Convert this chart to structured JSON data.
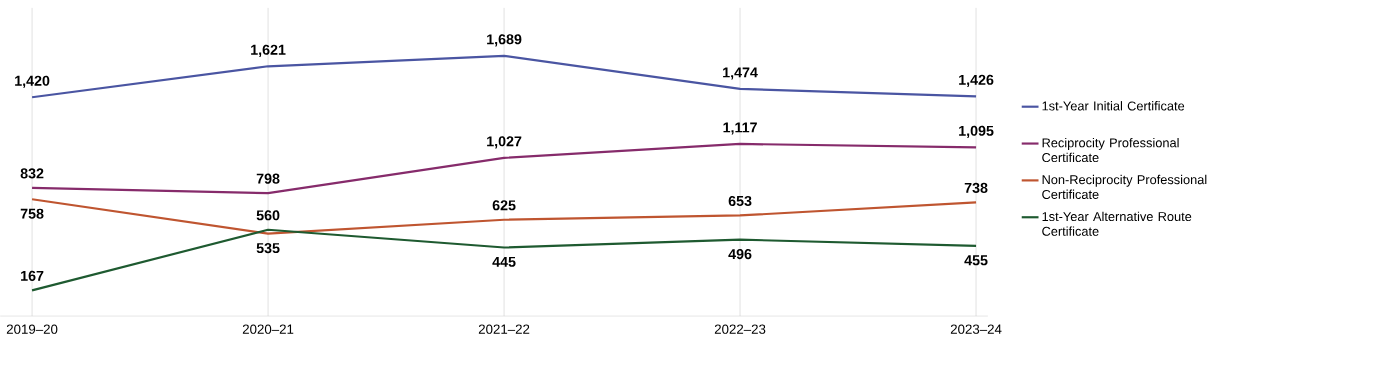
{
  "chart_data": {
    "type": "line",
    "categories": [
      "2019–20",
      "2020–21",
      "2021–22",
      "2022–23",
      "2023–24"
    ],
    "series": [
      {
        "name": "1st-Year Initial Certificate",
        "color": "#4a55a2",
        "values": [
          1420,
          1621,
          1689,
          1474,
          1426
        ],
        "value_labels": [
          "1,420",
          "1,621",
          "1,689",
          "1,474",
          "1,426"
        ]
      },
      {
        "name": "Reciprocity Professional Certificate",
        "color": "#862b6b",
        "values": [
          832,
          798,
          1027,
          1117,
          1095
        ],
        "value_labels": [
          "832",
          "798",
          "1,027",
          "1,117",
          "1,095"
        ]
      },
      {
        "name": "Non-Reciprocity Professional Certificate",
        "color": "#bf5530",
        "values": [
          758,
          535,
          625,
          653,
          738
        ],
        "value_labels": [
          "758",
          "535",
          "625",
          "653",
          "738"
        ]
      },
      {
        "name": "1st-Year Alternative Route Certificate",
        "color": "#1e5a30",
        "values": [
          167,
          560,
          445,
          496,
          455
        ],
        "value_labels": [
          "167",
          "560",
          "445",
          "496",
          "455"
        ]
      }
    ],
    "ylim": [
      0,
      2000
    ],
    "grid": "x",
    "legend": "right",
    "marker": "none",
    "line_style": "solid",
    "tick_labels": "x"
  }
}
